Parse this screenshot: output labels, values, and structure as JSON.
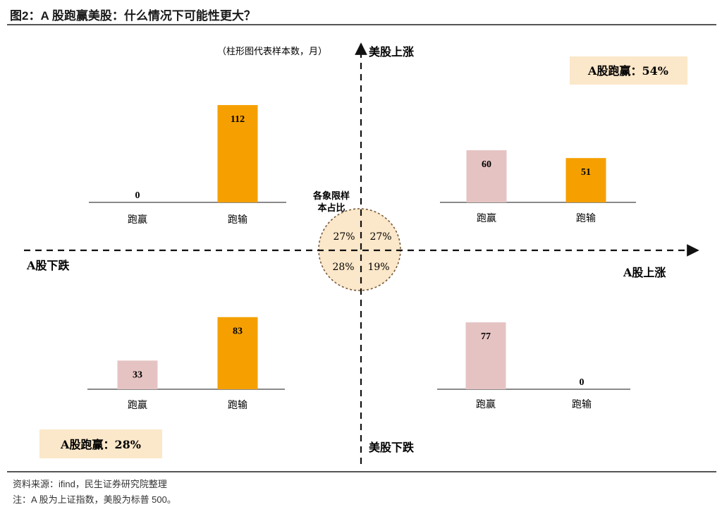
{
  "figure": {
    "title": "图2：A 股跑赢美股：什么情况下可能性更大？",
    "source": "资料来源：ifind，民生证券研究院整理",
    "note": "注：A 股为上证指数，美股为标普 500。"
  },
  "colors": {
    "win": "#e6c3c3",
    "lose": "#f5a000",
    "circle": "#fbe7c9",
    "callout": "#fbe7c9"
  },
  "chart_data": [
    {
      "type": "bar",
      "quadrant": "top-left",
      "categories": [
        "跑赢",
        "跑输"
      ],
      "values": [
        0,
        112
      ]
    },
    {
      "type": "bar",
      "quadrant": "top-right",
      "categories": [
        "跑赢",
        "跑输"
      ],
      "values": [
        60,
        51
      ]
    },
    {
      "type": "bar",
      "quadrant": "bottom-left",
      "categories": [
        "跑赢",
        "跑输"
      ],
      "values": [
        33,
        83
      ]
    },
    {
      "type": "bar",
      "quadrant": "bottom-right",
      "categories": [
        "跑赢",
        "跑输"
      ],
      "values": [
        77,
        0
      ]
    }
  ],
  "axes": {
    "y_top": "美股上涨",
    "y_bottom": "美股下跌",
    "x_left": "A股下跌",
    "x_right": "A股上涨",
    "subtitle": "（柱形图代表样本数，月）"
  },
  "circle": {
    "label_line1": "各象限样",
    "label_line2": "本占比",
    "top_left": "27%",
    "top_right": "27%",
    "bottom_left": "28%",
    "bottom_right": "19%"
  },
  "callouts": {
    "top_right": "A股跑赢：54%",
    "bottom_left": "A股跑赢：28%"
  }
}
